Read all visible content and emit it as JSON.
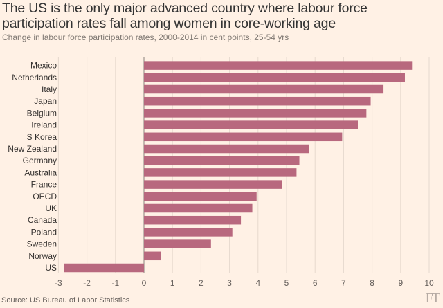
{
  "chart_data": {
    "type": "bar",
    "orientation": "horizontal",
    "title": "The US is the only major advanced country where labour force participation rates fall among women in core-working age",
    "subtitle": "Change in labour force participation rates, 2000-2014 in cent points, 25-54 yrs",
    "categories": [
      "Mexico",
      "Netherlands",
      "Italy",
      "Japan",
      "Belgium",
      "Ireland",
      "S Korea",
      "New Zealand",
      "Germany",
      "Australia",
      "France",
      "OECD",
      "UK",
      "Canada",
      "Poland",
      "Sweden",
      "Norway",
      "US"
    ],
    "values": [
      9.4,
      9.15,
      8.4,
      7.95,
      7.8,
      7.5,
      6.95,
      5.8,
      5.45,
      5.35,
      4.85,
      3.95,
      3.8,
      3.4,
      3.1,
      2.35,
      0.6,
      -2.8
    ],
    "xlim": [
      -3,
      10
    ],
    "xticks": [
      -3,
      -2,
      -1,
      0,
      1,
      2,
      3,
      4,
      5,
      6,
      7,
      8,
      9,
      10
    ],
    "bar_color": "#b8687e",
    "grid": true,
    "source": "Source: US Bureau of Labor Statistics"
  },
  "branding": {
    "logo": "FT"
  }
}
